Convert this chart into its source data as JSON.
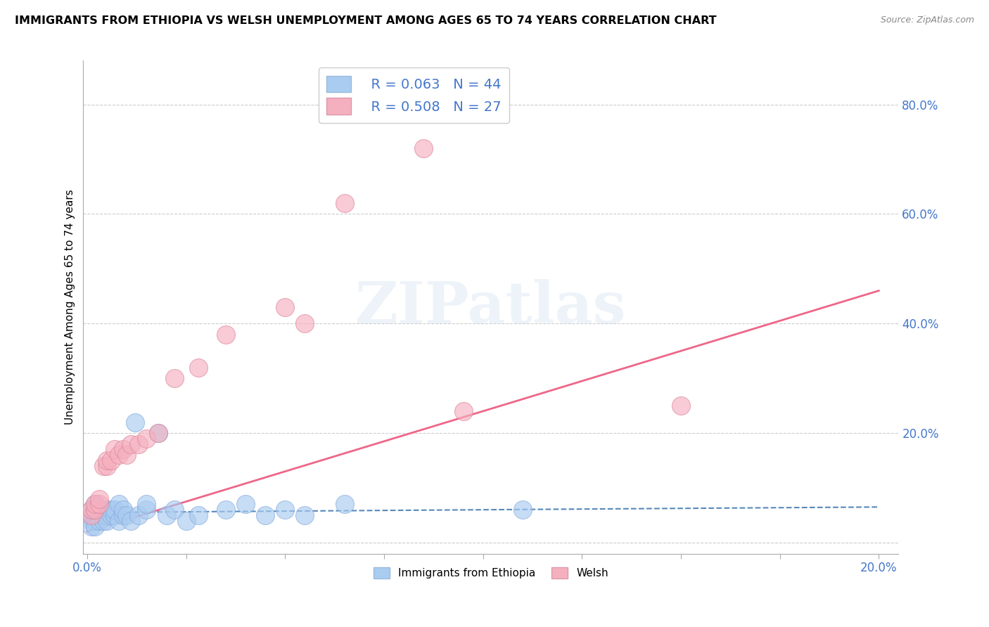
{
  "title": "IMMIGRANTS FROM ETHIOPIA VS WELSH UNEMPLOYMENT AMONG AGES 65 TO 74 YEARS CORRELATION CHART",
  "source": "Source: ZipAtlas.com",
  "ylabel": "Unemployment Among Ages 65 to 74 years",
  "y_ticks": [
    0.0,
    0.2,
    0.4,
    0.6,
    0.8
  ],
  "x_ticks": [
    0.0,
    0.025,
    0.05,
    0.075,
    0.1,
    0.125,
    0.15,
    0.175,
    0.2
  ],
  "xlim": [
    -0.001,
    0.205
  ],
  "ylim": [
    -0.02,
    0.88
  ],
  "legend_R1": "R = 0.063",
  "legend_N1": "N = 44",
  "legend_R2": "R = 0.508",
  "legend_N2": "N = 27",
  "color_blue": "#aaccf0",
  "color_blue_line": "#5588bb",
  "color_pink": "#f5b0c0",
  "color_pink_line": "#ee6688",
  "color_blue_text": "#4477cc",
  "ethiopia_x": [
    0.001,
    0.001,
    0.001,
    0.001,
    0.002,
    0.002,
    0.002,
    0.002,
    0.002,
    0.003,
    0.003,
    0.003,
    0.004,
    0.004,
    0.004,
    0.005,
    0.005,
    0.005,
    0.006,
    0.006,
    0.007,
    0.007,
    0.008,
    0.008,
    0.009,
    0.009,
    0.01,
    0.011,
    0.012,
    0.013,
    0.015,
    0.015,
    0.018,
    0.02,
    0.022,
    0.025,
    0.028,
    0.035,
    0.04,
    0.045,
    0.05,
    0.055,
    0.065,
    0.11
  ],
  "ethiopia_y": [
    0.05,
    0.04,
    0.06,
    0.03,
    0.05,
    0.06,
    0.04,
    0.07,
    0.03,
    0.05,
    0.06,
    0.04,
    0.05,
    0.06,
    0.04,
    0.05,
    0.06,
    0.04,
    0.05,
    0.06,
    0.05,
    0.06,
    0.04,
    0.07,
    0.05,
    0.06,
    0.05,
    0.04,
    0.22,
    0.05,
    0.06,
    0.07,
    0.2,
    0.05,
    0.06,
    0.04,
    0.05,
    0.06,
    0.07,
    0.05,
    0.06,
    0.05,
    0.07,
    0.06
  ],
  "welsh_x": [
    0.001,
    0.001,
    0.002,
    0.002,
    0.003,
    0.003,
    0.004,
    0.005,
    0.005,
    0.006,
    0.007,
    0.008,
    0.009,
    0.01,
    0.011,
    0.013,
    0.015,
    0.018,
    0.022,
    0.028,
    0.035,
    0.05,
    0.055,
    0.065,
    0.085,
    0.095,
    0.15
  ],
  "welsh_y": [
    0.05,
    0.06,
    0.06,
    0.07,
    0.07,
    0.08,
    0.14,
    0.14,
    0.15,
    0.15,
    0.17,
    0.16,
    0.17,
    0.16,
    0.18,
    0.18,
    0.19,
    0.2,
    0.3,
    0.32,
    0.38,
    0.43,
    0.4,
    0.62,
    0.72,
    0.24,
    0.25
  ],
  "eth_line_x": [
    0.0,
    0.2
  ],
  "eth_line_y": [
    0.055,
    0.065
  ],
  "welsh_line_x": [
    0.0,
    0.2
  ],
  "welsh_line_y": [
    0.02,
    0.46
  ]
}
